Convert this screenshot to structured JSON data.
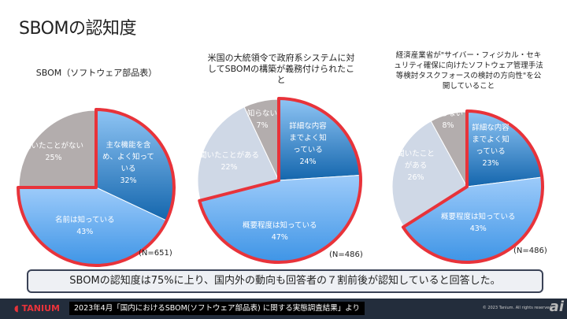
{
  "page_title": "SBOMの認知度",
  "charts": [
    {
      "title": "SBOM（ソフトウェア部品表）",
      "n": "(N=651)",
      "slices": [
        {
          "label": "主な機能を含め、よく知っている",
          "value": "32%",
          "pct": 32
        },
        {
          "label": "名前は知っている",
          "value": "43%",
          "pct": 43
        },
        {
          "label": "聞いたことがない",
          "value": "25%",
          "pct": 25
        }
      ]
    },
    {
      "title": "米国の大統領令で政府系システムに対してSBOMの構築が義務付けられたこと",
      "n": "(N=486)",
      "slices": [
        {
          "label": "詳細な内容までよく知っている",
          "value": "24%",
          "pct": 24
        },
        {
          "label": "概要程度は知っている",
          "value": "47%",
          "pct": 47
        },
        {
          "label": "聞いたことがある",
          "value": "22%",
          "pct": 22
        },
        {
          "label": "知らない",
          "value": "7%",
          "pct": 7
        }
      ]
    },
    {
      "title": "経済産業省が\"サイバー・フィジカル・セキュリティ確保に向けたソフトウェア管理手法等検討タスクフォースの検討の方向性\"を公開していること",
      "n": "(N=486)",
      "slices": [
        {
          "label": "詳細な内容までよく知っている",
          "value": "23%",
          "pct": 23
        },
        {
          "label": "概要程度は知っている",
          "value": "43%",
          "pct": 43
        },
        {
          "label": "聞いたことがある",
          "value": "26%",
          "pct": 26
        },
        {
          "label": "知らない",
          "value": "8%",
          "pct": 8
        }
      ]
    }
  ],
  "summary": "SBOMの認知度は75%に上り、国内外の動向も回答者の７割前後が認知していると回答した。",
  "footer": {
    "logo": "TANIUM",
    "source": "2023年4月「国内におけるSBOM(ソフトウェア部品表) に関する実態調査結果」より",
    "copyright": "© 2023 Tanium. All rights reserved.",
    "watermark": "ai"
  },
  "colors": {
    "highlight": "#e8333a",
    "dark_blue": "#1a6fb8",
    "light_blue": "#6fb3f5",
    "pale": "#cfd8e6",
    "gray": "#b3adad"
  }
}
